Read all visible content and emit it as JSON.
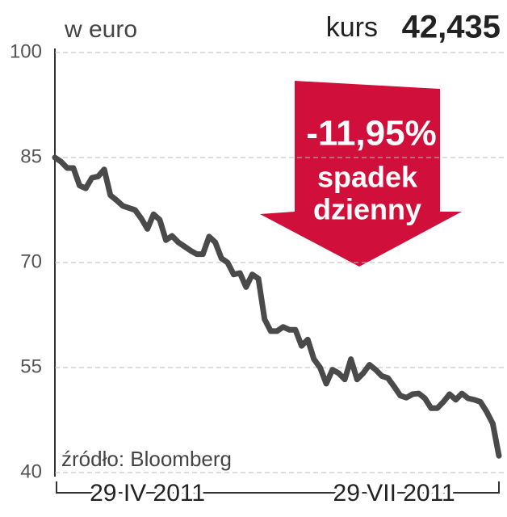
{
  "chart_data": {
    "type": "line",
    "unit_label": "w euro",
    "header_label": "kurs",
    "header_value": "42,435",
    "badge": {
      "change": "-11,95%",
      "line1": "spadek",
      "line2": "dzienny"
    },
    "source": "źródło: Bloomberg",
    "categories": [
      null,
      null,
      null,
      null,
      null,
      null,
      null,
      null,
      null,
      null,
      null,
      null,
      null,
      null,
      null,
      "29 IV 2011",
      null,
      null,
      null,
      null,
      null,
      null,
      null,
      null,
      null,
      null,
      null,
      null,
      null,
      null,
      null,
      null,
      null,
      null,
      null,
      null,
      null,
      null,
      null,
      null,
      null,
      null,
      null,
      null,
      null,
      null,
      null,
      null,
      null,
      null,
      null,
      null,
      null,
      null,
      null,
      "29 VII 2011",
      null,
      null,
      null,
      null,
      null,
      null,
      null,
      null,
      null,
      null,
      null,
      null,
      null,
      null,
      null,
      null,
      null
    ],
    "series": [
      {
        "color": "#4a4a4a",
        "values": [
          85,
          84.4,
          83.5,
          83.5,
          81,
          80.6,
          82.1,
          82.3,
          83.3,
          79.6,
          78.9,
          78.1,
          77.8,
          77.5,
          76.3,
          74.8,
          76.9,
          76.1,
          73.2,
          73.8,
          72.9,
          72.3,
          71.7,
          71.2,
          71.2,
          73.7,
          72.9,
          70.6,
          70,
          68.3,
          68.5,
          66.5,
          68.3,
          67.7,
          61.9,
          60.2,
          60.2,
          60.8,
          60.4,
          60.4,
          58.1,
          59,
          56.2,
          55,
          52.7,
          54.7,
          54.2,
          53.3,
          56.2,
          53.3,
          54.2,
          55.4,
          54.7,
          53.8,
          53.5,
          52.3,
          51,
          50.7,
          51.2,
          51.3,
          50.6,
          49.2,
          49.2,
          50.1,
          51.2,
          50.4,
          51.3,
          50.6,
          50.4,
          50.1,
          48.7,
          47,
          42.4
        ]
      }
    ],
    "ylim": [
      40,
      100
    ],
    "yticks": [
      40,
      55,
      70,
      85,
      100
    ],
    "grid": true,
    "badge_color": "#d0103a"
  }
}
